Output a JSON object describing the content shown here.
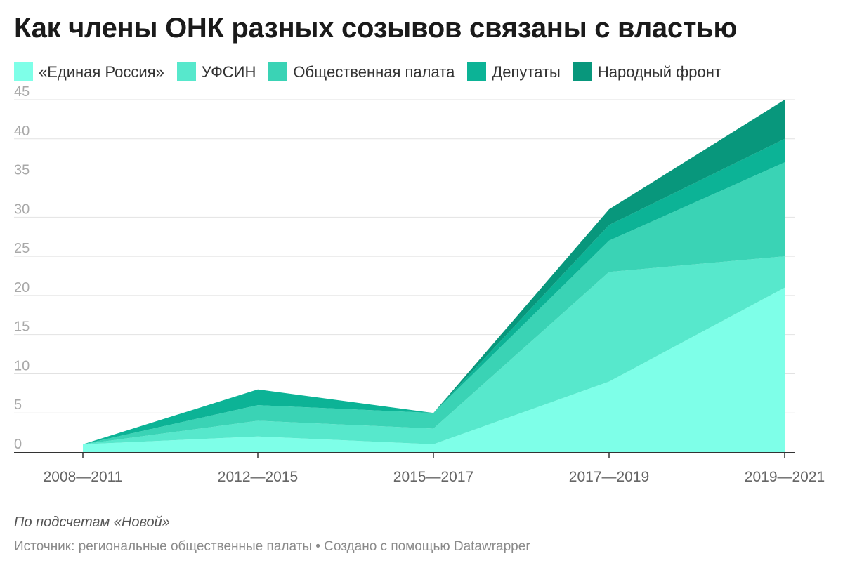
{
  "chart_data": {
    "type": "area",
    "stacked": true,
    "title": "Как члены ОНК разных созывов связаны с властью",
    "categories": [
      "2008—2011",
      "2012—2015",
      "2015—2017",
      "2017—2019",
      "2019—2021"
    ],
    "y_ticks": [
      "0",
      "5",
      "10",
      "15",
      "20",
      "25",
      "30",
      "35",
      "40",
      "45"
    ],
    "ylim": [
      0,
      45
    ],
    "grid": true,
    "legend_position": "top",
    "series": [
      {
        "name": "«Единая Россия»",
        "color": "#7effe8",
        "values": [
          1,
          2,
          1,
          9,
          21
        ]
      },
      {
        "name": "УФСИН",
        "color": "#57e8cc",
        "values": [
          0,
          2,
          2,
          14,
          4
        ]
      },
      {
        "name": "Общественная палата",
        "color": "#3ad3b5",
        "values": [
          0,
          2,
          2,
          4,
          12
        ]
      },
      {
        "name": "Депутаты",
        "color": "#0cb396",
        "values": [
          0,
          2,
          0,
          2,
          3
        ]
      },
      {
        "name": "Народный фронт",
        "color": "#08977c",
        "values": [
          0,
          0,
          0,
          2,
          5
        ]
      }
    ]
  },
  "footer": {
    "note": "По подсчетам «Новой»",
    "source": "Источник: региональные общественные палаты • Создано с помощью Datawrapper"
  }
}
